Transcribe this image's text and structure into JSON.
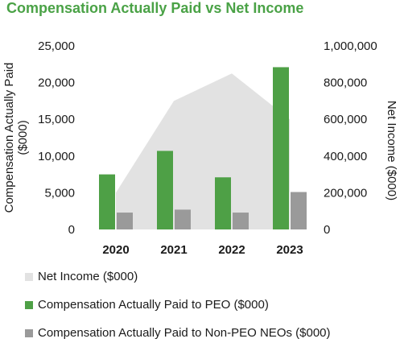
{
  "title": "Compensation Actually Paid vs Net Income",
  "colors": {
    "title": "#4aa246",
    "net_income": "#e2e2e2",
    "peo": "#4ea046",
    "non_peo": "#9a9a9a",
    "text": "#1a1a1a"
  },
  "chart_data": {
    "type": "bar",
    "categories": [
      "2020",
      "2021",
      "2022",
      "2023"
    ],
    "ylabel": "Compensation Actually Paid ($000)",
    "y2label": "Net Income ($000)",
    "ylim": [
      0,
      25000
    ],
    "y2lim": [
      0,
      1000000
    ],
    "y_ticks": [
      "25,000",
      "20,000",
      "15,000",
      "10,000",
      "5,000",
      "0"
    ],
    "y2_ticks": [
      "1,000,000",
      "800,000",
      "600,000",
      "400,000",
      "200,000",
      "0"
    ],
    "grid": false,
    "legend_position": "bottom",
    "series": [
      {
        "name": "Net Income ($000)",
        "type": "area",
        "axis": "right",
        "values": [
          200000,
          700000,
          850000,
          600000
        ]
      },
      {
        "name": "Compensation Actually Paid to PEO ($000)",
        "type": "bar",
        "axis": "left",
        "values": [
          7500,
          10700,
          7100,
          22100
        ]
      },
      {
        "name": "Compensation Actually Paid to Non-PEO NEOs ($000)",
        "type": "bar",
        "axis": "left",
        "values": [
          2300,
          2700,
          2300,
          5100
        ]
      }
    ]
  }
}
